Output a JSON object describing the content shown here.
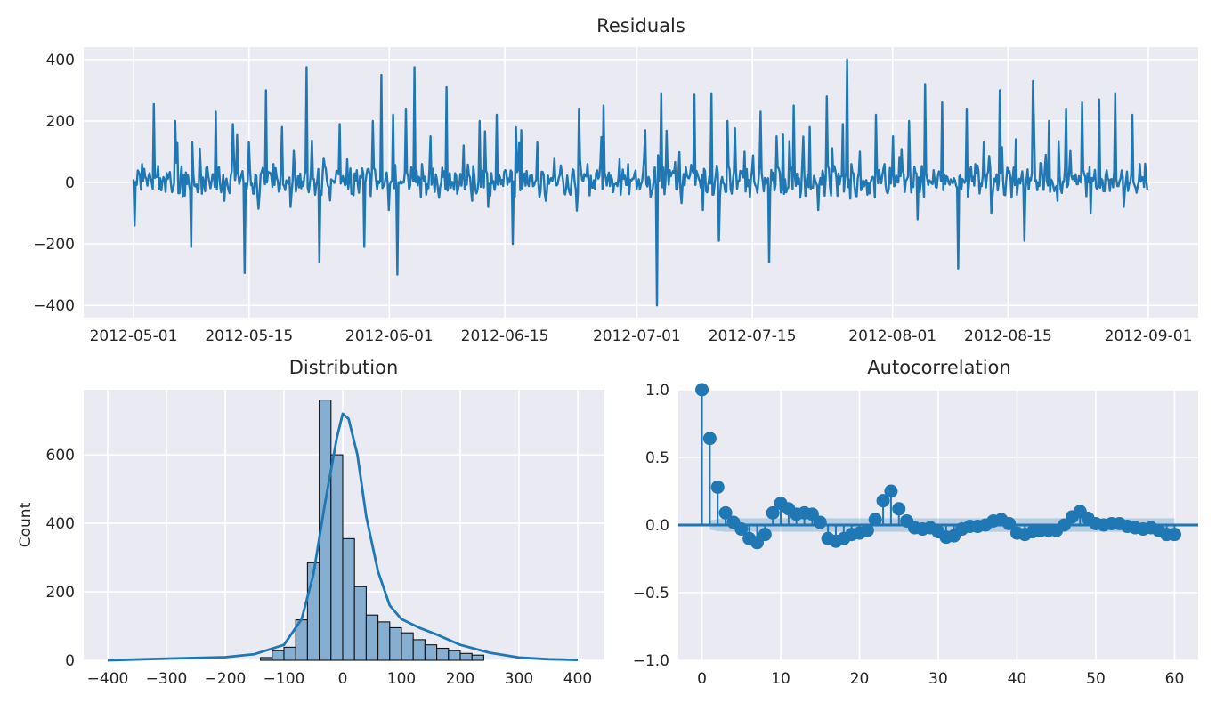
{
  "chart_data": [
    {
      "type": "line",
      "title": "Residuals",
      "xlabel": "",
      "ylabel": "",
      "x_range": [
        "2012-05-01",
        "2012-09-01"
      ],
      "xticks": [
        "2012-05-01",
        "2012-05-15",
        "2012-06-01",
        "2012-06-15",
        "2012-07-01",
        "2012-07-15",
        "2012-08-01",
        "2012-08-15",
        "2012-09-01"
      ],
      "ylim": [
        -440,
        440
      ],
      "yticks": [
        -400,
        -200,
        0,
        200,
        400
      ],
      "grid": true,
      "series": [
        {
          "frequency": "hourly",
          "sampled_points": [
            [
              "2012-05-01",
              10
            ],
            [
              "2012-05-01 04:00",
              -140
            ],
            [
              "2012-05-02",
              60
            ],
            [
              "2012-05-03",
              30
            ],
            [
              "2012-05-03 12:00",
              255
            ],
            [
              "2012-05-05",
              30
            ],
            [
              "2012-05-06",
              200
            ],
            [
              "2012-05-07",
              -45
            ],
            [
              "2012-05-08",
              -210
            ],
            [
              "2012-05-09",
              110
            ],
            [
              "2012-05-10",
              20
            ],
            [
              "2012-05-11",
              230
            ],
            [
              "2012-05-12",
              -60
            ],
            [
              "2012-05-13",
              190
            ],
            [
              "2012-05-14",
              10
            ],
            [
              "2012-05-14 12:00",
              -295
            ],
            [
              "2012-05-15",
              130
            ],
            [
              "2012-05-16",
              -40
            ],
            [
              "2012-05-17",
              300
            ],
            [
              "2012-05-18",
              60
            ],
            [
              "2012-05-19",
              180
            ],
            [
              "2012-05-20",
              -80
            ],
            [
              "2012-05-21",
              20
            ],
            [
              "2012-05-22",
              375
            ],
            [
              "2012-05-23",
              -40
            ],
            [
              "2012-05-23 12:00",
              -260
            ],
            [
              "2012-05-24",
              80
            ],
            [
              "2012-05-25",
              10
            ],
            [
              "2012-05-26",
              190
            ],
            [
              "2012-05-27",
              -20
            ],
            [
              "2012-05-28",
              40
            ],
            [
              "2012-05-29",
              -210
            ],
            [
              "2012-05-30",
              200
            ],
            [
              "2012-05-31",
              350
            ],
            [
              "2012-06-01",
              -90
            ],
            [
              "2012-06-01 12:00",
              220
            ],
            [
              "2012-06-02",
              -300
            ],
            [
              "2012-06-03",
              240
            ],
            [
              "2012-06-04",
              375
            ],
            [
              "2012-06-05",
              60
            ],
            [
              "2012-06-06",
              150
            ],
            [
              "2012-06-07",
              -50
            ],
            [
              "2012-06-08",
              310
            ],
            [
              "2012-06-09",
              30
            ],
            [
              "2012-06-10",
              120
            ],
            [
              "2012-06-11",
              -60
            ],
            [
              "2012-06-12",
              200
            ],
            [
              "2012-06-13",
              -80
            ],
            [
              "2012-06-14",
              220
            ],
            [
              "2012-06-15",
              40
            ],
            [
              "2012-06-16",
              -200
            ],
            [
              "2012-06-17",
              170
            ],
            [
              "2012-06-18",
              20
            ],
            [
              "2012-06-19",
              130
            ],
            [
              "2012-06-20",
              -60
            ],
            [
              "2012-06-21",
              80
            ],
            [
              "2012-06-22",
              10
            ],
            [
              "2012-06-23",
              -40
            ],
            [
              "2012-06-24",
              240
            ],
            [
              "2012-06-25",
              60
            ],
            [
              "2012-06-26",
              30
            ],
            [
              "2012-06-27",
              250
            ],
            [
              "2012-06-28",
              10
            ],
            [
              "2012-06-29",
              -40
            ],
            [
              "2012-06-30",
              60
            ],
            [
              "2012-07-01",
              -20
            ],
            [
              "2012-07-02",
              170
            ],
            [
              "2012-07-03",
              10
            ],
            [
              "2012-07-03 12:00",
              -400
            ],
            [
              "2012-07-04",
              290
            ],
            [
              "2012-07-05",
              40
            ],
            [
              "2012-07-06",
              20
            ],
            [
              "2012-07-07",
              50
            ],
            [
              "2012-07-08",
              285
            ],
            [
              "2012-07-09",
              -90
            ],
            [
              "2012-07-10",
              290
            ],
            [
              "2012-07-11",
              -190
            ],
            [
              "2012-07-12",
              200
            ],
            [
              "2012-07-13",
              40
            ],
            [
              "2012-07-14",
              100
            ],
            [
              "2012-07-15",
              40
            ],
            [
              "2012-07-16",
              230
            ],
            [
              "2012-07-17",
              -260
            ],
            [
              "2012-07-18",
              150
            ],
            [
              "2012-07-19",
              10
            ],
            [
              "2012-07-20",
              250
            ],
            [
              "2012-07-21",
              60
            ],
            [
              "2012-07-22",
              180
            ],
            [
              "2012-07-23",
              -90
            ],
            [
              "2012-07-24",
              280
            ],
            [
              "2012-07-25",
              40
            ],
            [
              "2012-07-26",
              190
            ],
            [
              "2012-07-26 12:00",
              400
            ],
            [
              "2012-07-27",
              60
            ],
            [
              "2012-07-28",
              100
            ],
            [
              "2012-07-29",
              -40
            ],
            [
              "2012-07-30",
              220
            ],
            [
              "2012-07-31",
              60
            ],
            [
              "2012-08-01",
              150
            ],
            [
              "2012-08-02",
              20
            ],
            [
              "2012-08-03",
              200
            ],
            [
              "2012-08-04",
              -120
            ],
            [
              "2012-08-05",
              320
            ],
            [
              "2012-08-06",
              40
            ],
            [
              "2012-08-07",
              260
            ],
            [
              "2012-08-08",
              10
            ],
            [
              "2012-08-09",
              -280
            ],
            [
              "2012-08-10",
              240
            ],
            [
              "2012-08-11",
              60
            ],
            [
              "2012-08-12",
              130
            ],
            [
              "2012-08-13",
              -100
            ],
            [
              "2012-08-14",
              300
            ],
            [
              "2012-08-15",
              30
            ],
            [
              "2012-08-16",
              140
            ],
            [
              "2012-08-17",
              -190
            ],
            [
              "2012-08-18",
              330
            ],
            [
              "2012-08-19",
              60
            ],
            [
              "2012-08-20",
              200
            ],
            [
              "2012-08-21",
              -60
            ],
            [
              "2012-08-22",
              240
            ],
            [
              "2012-08-23",
              20
            ],
            [
              "2012-08-24",
              260
            ],
            [
              "2012-08-25",
              -100
            ],
            [
              "2012-08-26",
              270
            ],
            [
              "2012-08-27",
              40
            ],
            [
              "2012-08-28",
              290
            ],
            [
              "2012-08-29",
              -80
            ],
            [
              "2012-08-30",
              220
            ],
            [
              "2012-08-31",
              60
            ],
            [
              "2012-09-01",
              10
            ]
          ]
        }
      ]
    },
    {
      "type": "bar",
      "title": "Distribution",
      "xlabel": "",
      "ylabel": "Count",
      "xlim": [
        -400,
        400
      ],
      "xticks": [
        -400,
        -300,
        -200,
        -100,
        0,
        100,
        200,
        300,
        400
      ],
      "ylim": [
        0,
        790
      ],
      "yticks": [
        0,
        200,
        400,
        600
      ],
      "grid": true,
      "bin_width": 20,
      "bin_edges_start": -140,
      "counts": [
        8,
        28,
        38,
        118,
        285,
        760,
        600,
        355,
        215,
        132,
        112,
        95,
        80,
        60,
        45,
        35,
        28,
        20,
        15,
        0,
        0,
        0,
        0
      ],
      "kde_points": [
        [
          -400,
          0
        ],
        [
          -300,
          5
        ],
        [
          -200,
          9
        ],
        [
          -150,
          18
        ],
        [
          -100,
          45
        ],
        [
          -70,
          120
        ],
        [
          -50,
          250
        ],
        [
          -30,
          460
        ],
        [
          -10,
          650
        ],
        [
          0,
          720
        ],
        [
          10,
          705
        ],
        [
          25,
          600
        ],
        [
          40,
          420
        ],
        [
          60,
          260
        ],
        [
          80,
          160
        ],
        [
          100,
          120
        ],
        [
          130,
          95
        ],
        [
          160,
          75
        ],
        [
          200,
          45
        ],
        [
          250,
          22
        ],
        [
          300,
          8
        ],
        [
          350,
          3
        ],
        [
          400,
          1
        ]
      ]
    },
    {
      "type": "scatter",
      "title": "Autocorrelation",
      "xlabel": "",
      "ylabel": "",
      "xlim": [
        -3,
        63
      ],
      "xticks": [
        0,
        10,
        20,
        30,
        40,
        50,
        60
      ],
      "ylim": [
        -1.0,
        1.0
      ],
      "yticks": [
        -1.0,
        -0.5,
        0.0,
        0.5,
        1.0
      ],
      "ytick_labels": [
        "−1.0",
        "−0.5",
        "0.0",
        "0.5",
        "1.0"
      ],
      "grid": true,
      "lags": [
        0,
        1,
        2,
        3,
        4,
        5,
        6,
        7,
        8,
        9,
        10,
        11,
        12,
        13,
        14,
        15,
        16,
        17,
        18,
        19,
        20,
        21,
        22,
        23,
        24,
        25,
        26,
        27,
        28,
        29,
        30,
        31,
        32,
        33,
        34,
        35,
        36,
        37,
        38,
        39,
        40,
        41,
        42,
        43,
        44,
        45,
        46,
        47,
        48,
        49,
        50,
        51,
        52,
        53,
        54,
        55,
        56,
        57,
        58,
        59,
        60
      ],
      "values": [
        1.0,
        0.64,
        0.28,
        0.09,
        0.02,
        -0.03,
        -0.1,
        -0.13,
        -0.07,
        0.09,
        0.16,
        0.12,
        0.08,
        0.09,
        0.08,
        0.02,
        -0.1,
        -0.12,
        -0.1,
        -0.07,
        -0.06,
        -0.04,
        0.04,
        0.18,
        0.25,
        0.12,
        0.03,
        -0.02,
        -0.03,
        -0.02,
        -0.05,
        -0.09,
        -0.08,
        -0.03,
        -0.01,
        -0.01,
        0.0,
        0.03,
        0.04,
        0.01,
        -0.06,
        -0.07,
        -0.05,
        -0.04,
        -0.04,
        -0.04,
        0.0,
        0.06,
        0.1,
        0.05,
        0.01,
        0.0,
        0.01,
        0.01,
        -0.01,
        -0.02,
        -0.03,
        -0.02,
        -0.04,
        -0.07,
        -0.07
      ],
      "confidence_band": 0.05
    }
  ],
  "colors": {
    "line": "#1f77b4",
    "bar_fill": "#86aed1",
    "panel_bg": "#eaeaf2",
    "grid": "#ffffff"
  }
}
